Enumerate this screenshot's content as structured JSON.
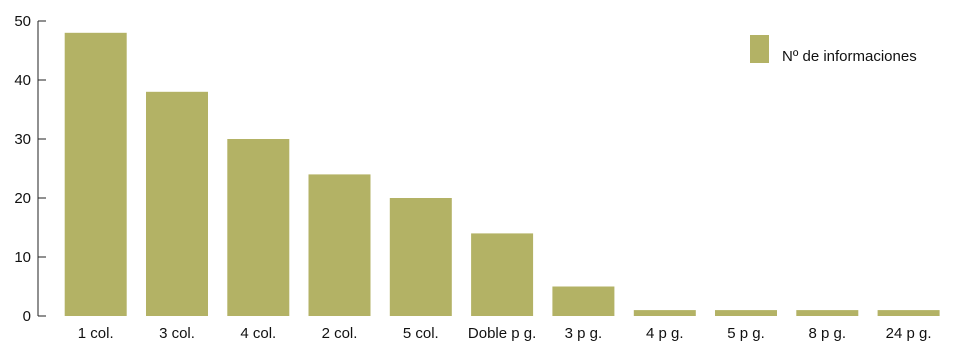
{
  "chart_data": {
    "type": "bar",
    "categories": [
      "1 col.",
      "3 col.",
      "4 col.",
      "2 col.",
      "5 col.",
      "Doble p g.",
      "3 p g.",
      "4 p g.",
      "5 p g.",
      "8 p g.",
      "24 p g."
    ],
    "series": [
      {
        "name": "Nº de informaciones",
        "values": [
          48,
          38,
          30,
          24,
          20,
          14,
          5,
          1,
          1,
          1,
          1
        ]
      }
    ],
    "ylim": [
      0,
      50
    ],
    "yticks": [
      0,
      10,
      20,
      30,
      40,
      50
    ],
    "title": "",
    "xlabel": "",
    "ylabel": "",
    "grid": false,
    "legend_position": "top-right",
    "bar_color": "#b3b265"
  }
}
